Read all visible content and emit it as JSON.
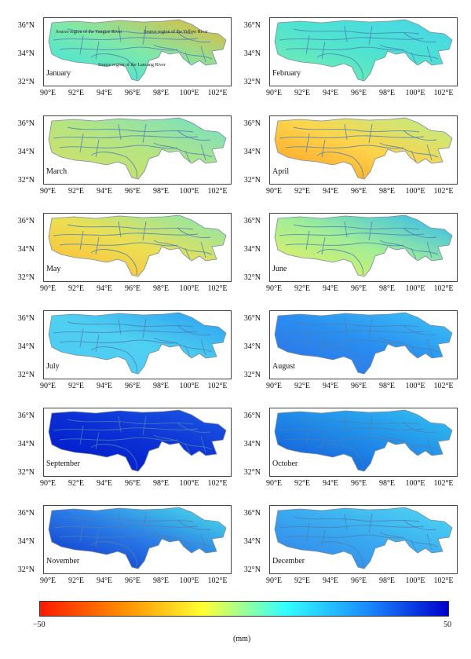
{
  "lat_labels": [
    "36°N",
    "34°N",
    "32°N"
  ],
  "lon_labels": [
    "90°E",
    "92°E",
    "94°E",
    "96°E",
    "98°E",
    "100°E",
    "102°E"
  ],
  "region_labels": [
    "Source region of the Yangtze River",
    "Source region of the Yellow River",
    "Source region of the Lancang River"
  ],
  "colorbar": {
    "min_label": "−50",
    "max_label": "50",
    "unit": "(mm)",
    "colors": [
      "#ff1a00",
      "#ff8c00",
      "#ffff33",
      "#33ffff",
      "#1a8cff",
      "#0000cc"
    ]
  },
  "panels": [
    {
      "month": "January",
      "stops": [
        "#37e3e6",
        "#7fe8a8",
        "#e6b837"
      ]
    },
    {
      "month": "February",
      "stops": [
        "#7af0a8",
        "#4fe3d0",
        "#46d6ea"
      ]
    },
    {
      "month": "March",
      "stops": [
        "#d6e060",
        "#b6e482",
        "#6fe0c8"
      ]
    },
    {
      "month": "April",
      "stops": [
        "#ff9a1e",
        "#ffd34a",
        "#b6f08a"
      ]
    },
    {
      "month": "May",
      "stops": [
        "#ffb833",
        "#ecdf52",
        "#7fe8b8"
      ]
    },
    {
      "month": "June",
      "stops": [
        "#f0f05a",
        "#a2ee96",
        "#2bb8f5"
      ]
    },
    {
      "month": "July",
      "stops": [
        "#4ec9f6",
        "#4fd0f0",
        "#2a9ef2"
      ]
    },
    {
      "month": "August",
      "stops": [
        "#2f6ee6",
        "#2a8ef0",
        "#3bc4f6"
      ]
    },
    {
      "month": "September",
      "stops": [
        "#0016c8",
        "#0b2fd4",
        "#1e5ae4"
      ]
    },
    {
      "month": "October",
      "stops": [
        "#1254d6",
        "#1f8be8",
        "#34c2f2"
      ]
    },
    {
      "month": "November",
      "stops": [
        "#0a30c8",
        "#2a7ae6",
        "#4ae2e8"
      ]
    },
    {
      "month": "December",
      "stops": [
        "#2f7fea",
        "#3aaaf0",
        "#4fd8f2"
      ]
    }
  ]
}
